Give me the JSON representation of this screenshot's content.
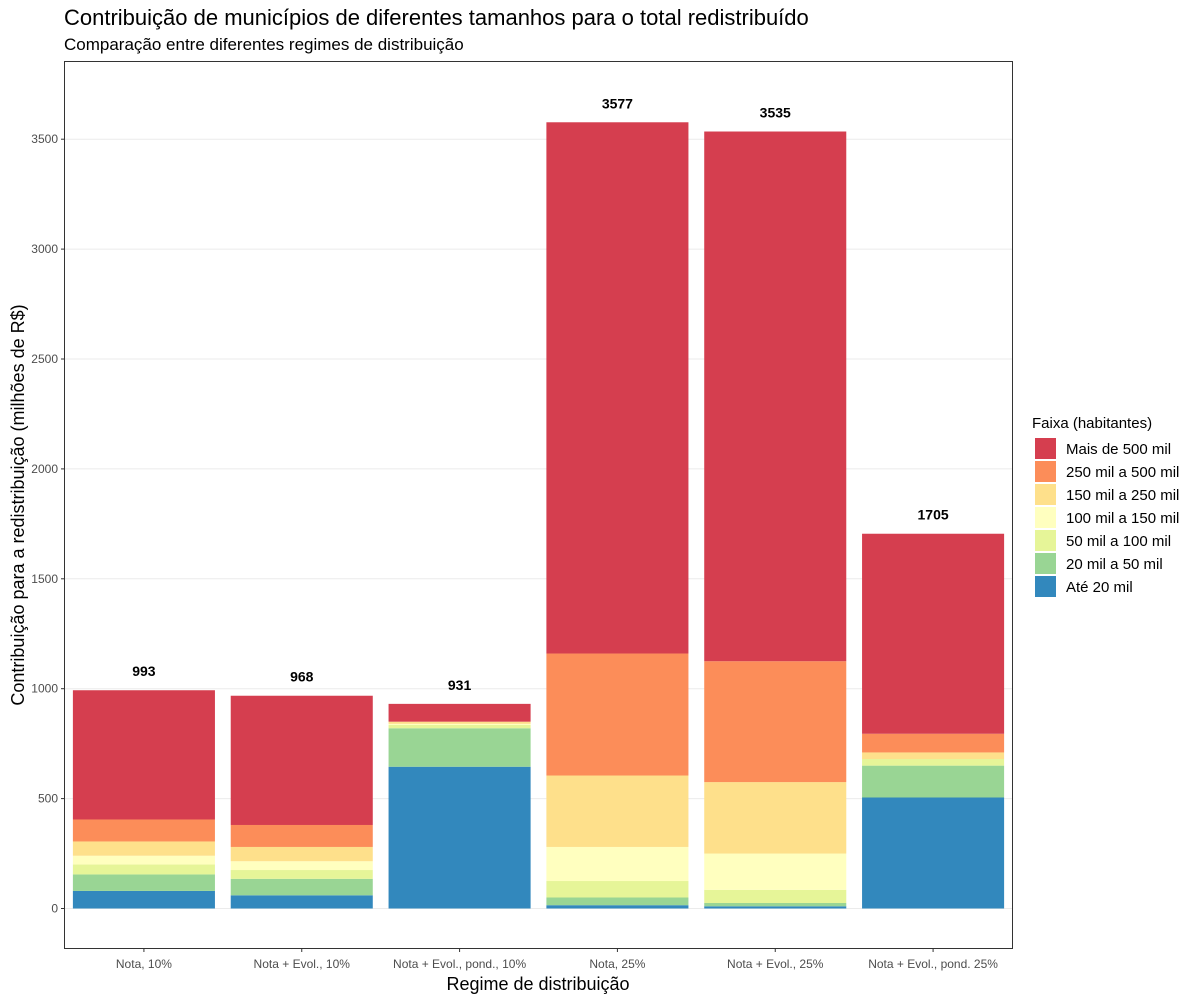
{
  "chart_data": {
    "type": "bar",
    "stacked": true,
    "title": "Contribuição de municípios de diferentes tamanhos para o total redistribuído",
    "subtitle": "Comparação entre diferentes regimes de distribuição",
    "xlabel": "Regime de distribuição",
    "ylabel": "Contribuição para a redistribuição (milhões de R$)",
    "ylim": [
      -170,
      3770
    ],
    "yticks": [
      0,
      500,
      1000,
      1500,
      2000,
      2500,
      3000,
      3500
    ],
    "grid": true,
    "legend_title": "Faixa (habitantes)",
    "legend_position": "right",
    "categories": [
      "Nota, 10%",
      "Nota + Evol., 10%",
      "Nota + Evol., pond., 10%",
      "Nota, 25%",
      "Nota + Evol., 25%",
      "Nota + Evol., pond. 25%"
    ],
    "totals": [
      993,
      968,
      931,
      3577,
      3535,
      1705
    ],
    "total_labels": [
      "993",
      "968",
      "931",
      "3577",
      "3535",
      "1705"
    ],
    "series": [
      {
        "name": "Até 20 mil",
        "color": "#3288BD",
        "values": [
          80,
          60,
          645,
          15,
          10,
          505
        ]
      },
      {
        "name": "20 mil a 50 mil",
        "color": "#99D594",
        "values": [
          75,
          75,
          175,
          35,
          15,
          145
        ]
      },
      {
        "name": "50 mil a 100 mil",
        "color": "#E6F598",
        "values": [
          45,
          40,
          15,
          75,
          60,
          30
        ]
      },
      {
        "name": "100 mil a 150 mil",
        "color": "#FFFFBF",
        "values": [
          40,
          40,
          5,
          155,
          165,
          0
        ]
      },
      {
        "name": "150 mil a 250 mil",
        "color": "#FEE08B",
        "values": [
          65,
          65,
          10,
          325,
          325,
          30
        ]
      },
      {
        "name": "250 mil a 500 mil",
        "color": "#FC8D59",
        "values": [
          100,
          100,
          0,
          555,
          550,
          85
        ]
      },
      {
        "name": "Mais de 500 mil",
        "color": "#D53E4F",
        "values": [
          588,
          588,
          81,
          2417,
          2410,
          910
        ]
      }
    ],
    "legend_order": [
      "Mais de 500 mil",
      "250 mil a 500 mil",
      "150 mil a 250 mil",
      "100 mil a 150 mil",
      "50 mil a 100 mil",
      "20 mil a 50 mil",
      "Até 20 mil"
    ]
  }
}
